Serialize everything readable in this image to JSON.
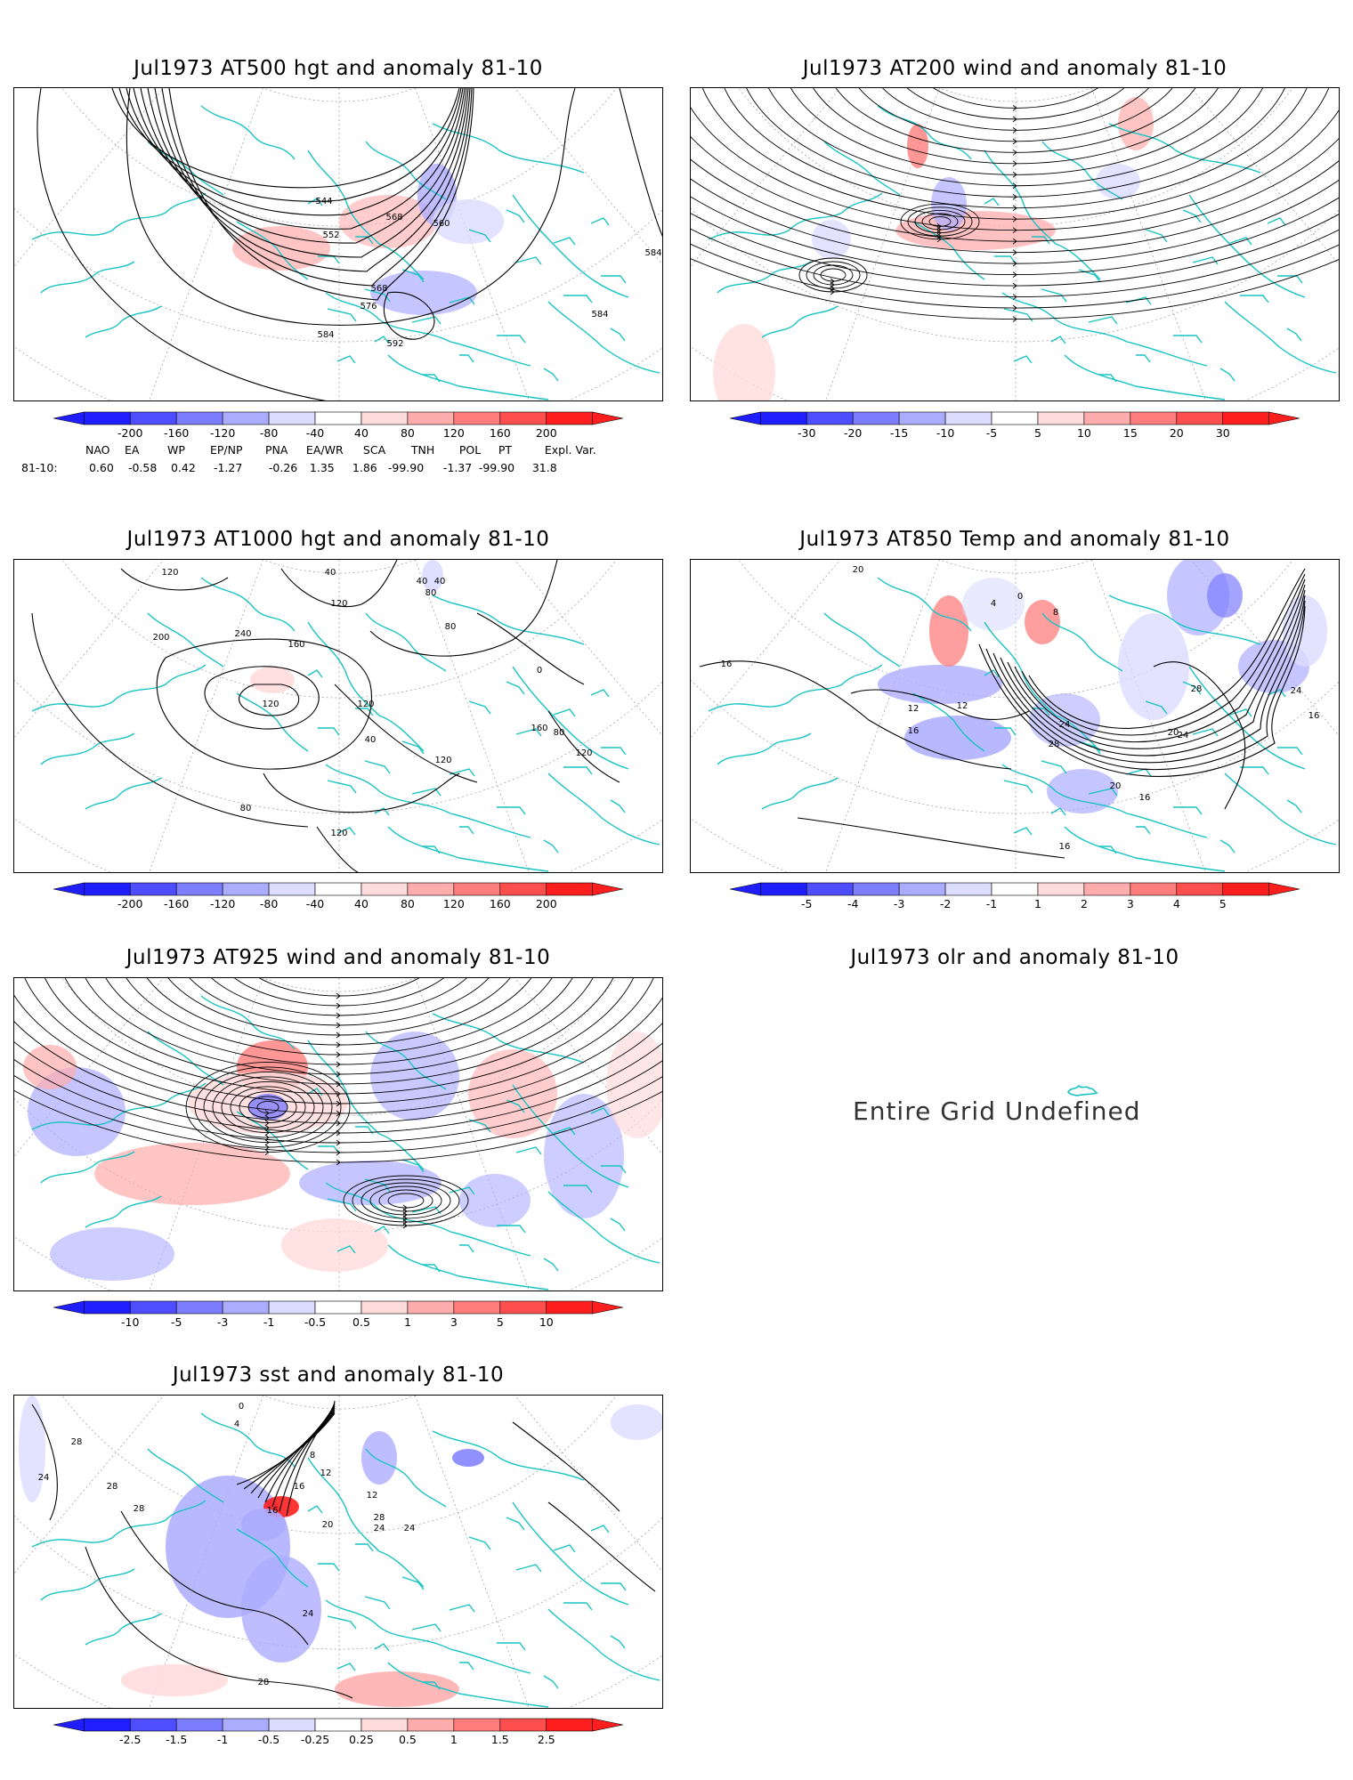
{
  "panels": [
    {
      "id": "p1",
      "title": "Jul1973 AT500 hgt and anomaly 81-10",
      "contour_labels": [
        "544",
        "552",
        "568",
        "560",
        "568",
        "576",
        "584",
        "592",
        "584",
        "584"
      ],
      "colorbar": {
        "labels": [
          "-200",
          "-160",
          "-120",
          "-80",
          "-40",
          "40",
          "80",
          "120",
          "160",
          "200"
        ]
      }
    },
    {
      "id": "p2",
      "title": "Jul1973 AT200 wind and anomaly 81-10",
      "contour_labels": [],
      "colorbar": {
        "labels": [
          "-30",
          "-20",
          "-15",
          "-10",
          "-5",
          "5",
          "10",
          "15",
          "20",
          "30"
        ]
      }
    },
    {
      "id": "p3",
      "title": "Jul1973 AT1000 hgt and anomaly 81-10",
      "contour_labels": [
        "120",
        "40",
        "120",
        "40",
        "40",
        "80",
        "80",
        "160",
        "200",
        "240",
        "120",
        "0",
        "160",
        "40",
        "80",
        "120",
        "120",
        "80",
        "120",
        "120"
      ],
      "colorbar": {
        "labels": [
          "-200",
          "-160",
          "-120",
          "-80",
          "-40",
          "40",
          "80",
          "120",
          "160",
          "200"
        ]
      }
    },
    {
      "id": "p4",
      "title": "Jul1973 AT850 Temp and anomaly 81-10",
      "contour_labels": [
        "20",
        "16",
        "4",
        "0",
        "8",
        "16",
        "12",
        "12",
        "16",
        "28",
        "24",
        "20",
        "28",
        "24",
        "16",
        "24",
        "20",
        "16",
        "16"
      ],
      "colorbar": {
        "labels": [
          "-5",
          "-4",
          "-3",
          "-2",
          "-1",
          "1",
          "2",
          "3",
          "4",
          "5"
        ]
      }
    },
    {
      "id": "p5",
      "title": "Jul1973 AT925 wind and anomaly 81-10",
      "contour_labels": [],
      "colorbar": {
        "labels": [
          "-10",
          "-5",
          "-3",
          "-1",
          "-0.5",
          "0.5",
          "1",
          "3",
          "5",
          "10"
        ]
      }
    },
    {
      "id": "p6",
      "title": "Jul1973 olr and anomaly 81-10",
      "message": "Entire Grid Undefined"
    },
    {
      "id": "p7",
      "title": "Jul1973 sst and anomaly 81-10",
      "contour_labels": [
        "28",
        "24",
        "28",
        "28",
        "0",
        "4",
        "8",
        "12",
        "16",
        "20",
        "24",
        "28",
        "16",
        "12",
        "24",
        "24",
        "28"
      ],
      "colorbar": {
        "labels": [
          "-2.5",
          "-1.5",
          "-1",
          "-0.5",
          "-0.25",
          "0.25",
          "0.5",
          "1",
          "1.5",
          "2.5"
        ]
      }
    }
  ],
  "teleconnections": {
    "headers": [
      "NAO",
      "EA",
      "WP",
      "EP/NP",
      "PNA",
      "EA/WR",
      "SCA",
      "TNH",
      "POL",
      "PT",
      "Expl. Var."
    ],
    "row_label": "81-10:",
    "values": [
      "0.60",
      "-0.58",
      "0.42",
      "-1.27",
      "-0.26",
      "1.35",
      "1.86",
      "-99.90",
      "-1.37",
      "-99.90",
      "31.8"
    ]
  },
  "colors": {
    "coast": "#19c3c3",
    "contour": "#000000",
    "scale": [
      "#1e1eff",
      "#4e4eff",
      "#7d7dff",
      "#acacff",
      "#dcdcff",
      "#ffffff",
      "#ffdcdc",
      "#ffacac",
      "#ff7d7d",
      "#ff4e4e",
      "#ff1e1e"
    ]
  }
}
